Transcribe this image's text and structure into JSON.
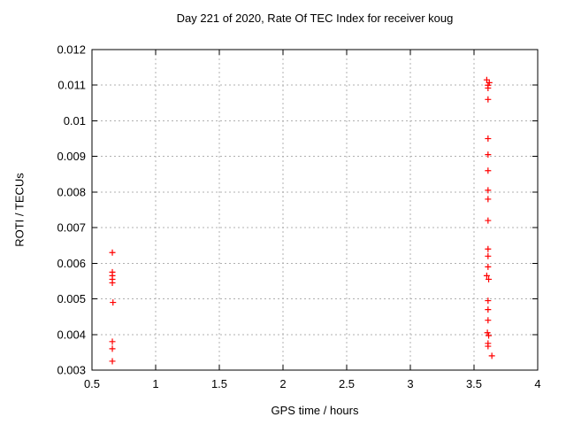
{
  "chart_data": {
    "type": "scatter",
    "title": "Day 221 of 2020, Rate Of TEC Index for receiver koug",
    "xlabel": "GPS time / hours",
    "ylabel": "ROTI / TECUs",
    "xlim": [
      0.5,
      4
    ],
    "ylim": [
      0.003,
      0.012
    ],
    "xticks": [
      0.5,
      1,
      1.5,
      2,
      2.5,
      3,
      3.5,
      4
    ],
    "xtick_labels": [
      "0.5",
      "1",
      "1.5",
      "2",
      "2.5",
      "3",
      "3.5",
      "4"
    ],
    "yticks": [
      0.003,
      0.004,
      0.005,
      0.006,
      0.007,
      0.008,
      0.009,
      0.01,
      0.011,
      0.012
    ],
    "ytick_labels": [
      "0.003",
      "0.004",
      "0.005",
      "0.006",
      "0.007",
      "0.008",
      "0.009",
      "0.01",
      "0.011",
      "0.012"
    ],
    "grid": true,
    "legend": "none",
    "marker": "plus",
    "marker_color": "#ff0000",
    "grid_color": "#b0b0b0",
    "border_color": "#000000",
    "background": "#ffffff",
    "series": [
      {
        "name": "ROTI",
        "points": [
          [
            0.66,
            0.0063
          ],
          [
            0.66,
            0.00575
          ],
          [
            0.66,
            0.00565
          ],
          [
            0.66,
            0.00555
          ],
          [
            0.66,
            0.00545
          ],
          [
            0.665,
            0.0049
          ],
          [
            0.66,
            0.0038
          ],
          [
            0.66,
            0.0036
          ],
          [
            0.66,
            0.00325
          ],
          [
            3.6,
            0.01115
          ],
          [
            3.62,
            0.01107
          ],
          [
            3.61,
            0.011
          ],
          [
            3.61,
            0.01092
          ],
          [
            3.61,
            0.0106
          ],
          [
            3.61,
            0.0095
          ],
          [
            3.61,
            0.00905
          ],
          [
            3.61,
            0.0086
          ],
          [
            3.61,
            0.00805
          ],
          [
            3.61,
            0.0078
          ],
          [
            3.61,
            0.0072
          ],
          [
            3.61,
            0.0064
          ],
          [
            3.61,
            0.0062
          ],
          [
            3.61,
            0.0059
          ],
          [
            3.6,
            0.00565
          ],
          [
            3.615,
            0.00555
          ],
          [
            3.61,
            0.00495
          ],
          [
            3.61,
            0.0047
          ],
          [
            3.61,
            0.0044
          ],
          [
            3.605,
            0.00405
          ],
          [
            3.615,
            0.00397
          ],
          [
            3.61,
            0.00375
          ],
          [
            3.61,
            0.00367
          ],
          [
            3.64,
            0.0034
          ]
        ]
      }
    ]
  }
}
